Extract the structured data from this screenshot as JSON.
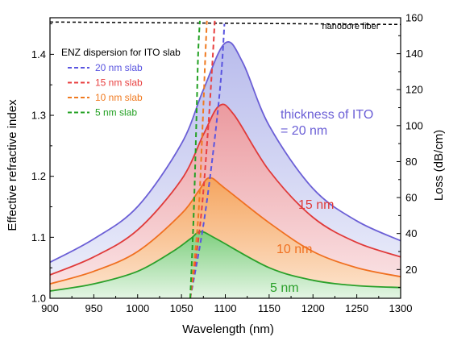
{
  "chart_data": {
    "type": "line",
    "xlabel": "Wavelength (nm)",
    "ylabel_left": "Effective refractive index",
    "ylabel_right": "Loss (dB/cm)",
    "xlim": [
      900,
      1300
    ],
    "ylim_left": [
      1.0,
      1.46
    ],
    "ylim_right": [
      4,
      160
    ],
    "x_ticks": [
      900,
      950,
      1000,
      1050,
      1100,
      1150,
      1200,
      1250,
      1300
    ],
    "y_left_ticks": [
      1.0,
      1.1,
      1.2,
      1.3,
      1.4
    ],
    "y_right_ticks": [
      20,
      40,
      60,
      80,
      100,
      120,
      140,
      160
    ],
    "loss_curves": [
      {
        "label": "thickness of ITO\n= 20 nm",
        "thickness": "20 nm",
        "color": "#6b5fd6",
        "fill_top": "#b9bcec",
        "fill_bottom": "#eef0fb",
        "points": [
          [
            900,
            24
          ],
          [
            950,
            37
          ],
          [
            1000,
            55
          ],
          [
            1050,
            90
          ],
          [
            1075,
            120
          ],
          [
            1100,
            146
          ],
          [
            1120,
            135
          ],
          [
            1150,
            100
          ],
          [
            1200,
            65
          ],
          [
            1250,
            47
          ],
          [
            1300,
            36
          ]
        ]
      },
      {
        "label": "15 nm",
        "thickness": "15 nm",
        "color": "#e03a3a",
        "fill_top": "#eb9a9f",
        "fill_bottom": "#fbe8ea",
        "points": [
          [
            900,
            17
          ],
          [
            950,
            27
          ],
          [
            1000,
            42
          ],
          [
            1050,
            70
          ],
          [
            1075,
            95
          ],
          [
            1093,
            111
          ],
          [
            1110,
            106
          ],
          [
            1150,
            75
          ],
          [
            1200,
            49
          ],
          [
            1250,
            35
          ],
          [
            1300,
            27
          ]
        ]
      },
      {
        "label": "10 nm",
        "thickness": "10 nm",
        "color": "#f07020",
        "fill_top": "#f5a55f",
        "fill_bottom": "#fde6d2",
        "points": [
          [
            900,
            12
          ],
          [
            950,
            19
          ],
          [
            1000,
            30
          ],
          [
            1050,
            51
          ],
          [
            1070,
            64
          ],
          [
            1082,
            71
          ],
          [
            1100,
            65
          ],
          [
            1150,
            46
          ],
          [
            1200,
            30
          ],
          [
            1250,
            21
          ],
          [
            1300,
            16
          ]
        ]
      },
      {
        "label": "5 nm",
        "thickness": "5 nm",
        "color": "#2aa02a",
        "fill_top": "#7fcf7f",
        "fill_bottom": "#e4f5e4",
        "points": [
          [
            900,
            8
          ],
          [
            950,
            12
          ],
          [
            1000,
            19
          ],
          [
            1040,
            30
          ],
          [
            1060,
            37
          ],
          [
            1072,
            41
          ],
          [
            1090,
            37
          ],
          [
            1150,
            21
          ],
          [
            1200,
            14
          ],
          [
            1250,
            11
          ],
          [
            1300,
            10
          ]
        ]
      }
    ],
    "dispersion_title": "ENZ dispersion for ITO slab",
    "dispersion_curves": [
      {
        "label": "20 nm slab",
        "color": "#5a55e0",
        "points": [
          [
            1060,
            1.0
          ],
          [
            1075,
            1.12
          ],
          [
            1087,
            1.25
          ],
          [
            1095,
            1.36
          ],
          [
            1099,
            1.45
          ]
        ]
      },
      {
        "label": "15 nm slab",
        "color": "#e84040",
        "points": [
          [
            1060,
            1.0
          ],
          [
            1072,
            1.13
          ],
          [
            1080,
            1.27
          ],
          [
            1085,
            1.38
          ],
          [
            1088,
            1.455
          ]
        ]
      },
      {
        "label": "10 nm slab",
        "color": "#f07a20",
        "points": [
          [
            1060,
            1.0
          ],
          [
            1069,
            1.13
          ],
          [
            1074,
            1.28
          ],
          [
            1077,
            1.39
          ],
          [
            1079,
            1.455
          ]
        ]
      },
      {
        "label": "5 nm slab",
        "color": "#22a022",
        "points": [
          [
            1060,
            1.0
          ],
          [
            1064,
            1.14
          ],
          [
            1067,
            1.29
          ],
          [
            1069,
            1.4
          ],
          [
            1071,
            1.455
          ]
        ]
      }
    ],
    "reference_line": {
      "label": "nanobore fiber",
      "color": "#000000",
      "points": [
        [
          900,
          1.453
        ],
        [
          1000,
          1.452
        ],
        [
          1100,
          1.451
        ],
        [
          1200,
          1.45
        ],
        [
          1300,
          1.449
        ]
      ]
    }
  }
}
